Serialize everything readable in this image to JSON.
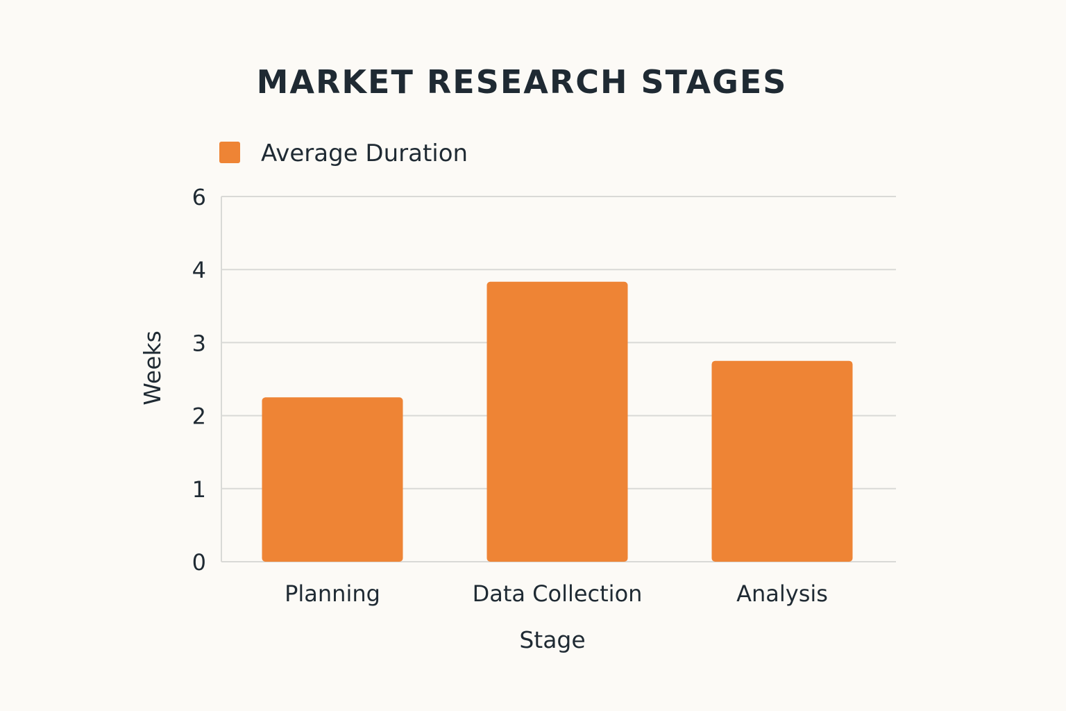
{
  "chart_data": {
    "type": "bar",
    "title": "MARKET RESEARCH STAGES",
    "xlabel": "Stage",
    "ylabel": "Weeks",
    "categories": [
      "Planning",
      "Data Collection",
      "Analysis"
    ],
    "series": [
      {
        "name": "Average Duration",
        "values": [
          2.7,
          4.6,
          3.3
        ],
        "color": "#ee8435"
      }
    ],
    "y_ticks": [
      "0",
      "1",
      "2",
      "3",
      "4",
      "6"
    ],
    "ylim": [
      0,
      6
    ],
    "grid": true,
    "legend_position": "top-left"
  }
}
